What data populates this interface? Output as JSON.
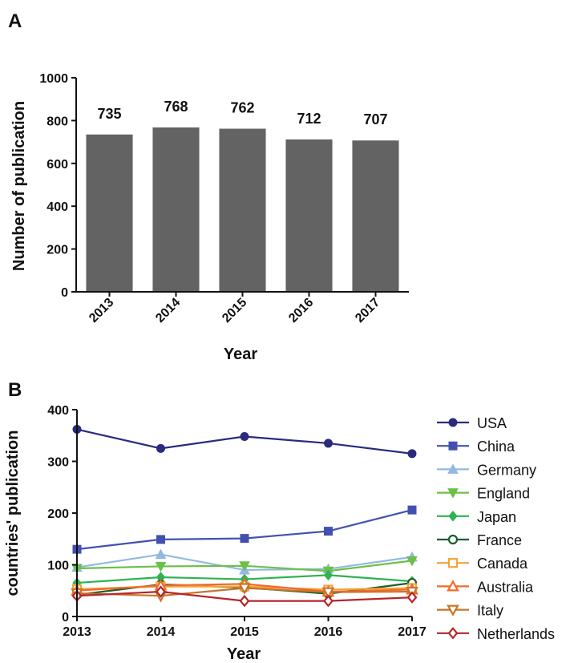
{
  "panel_a_label": "A",
  "panel_b_label": "B",
  "chart_data": [
    {
      "type": "bar",
      "categories": [
        "2013",
        "2014",
        "2015",
        "2016",
        "2017"
      ],
      "values": [
        735,
        768,
        762,
        712,
        707
      ],
      "data_labels": [
        "735",
        "768",
        "762",
        "712",
        "707"
      ],
      "title": "",
      "xlabel": "Year",
      "ylabel": "Number of publication",
      "ylim": [
        0,
        1000
      ],
      "yticks": [
        "0",
        "200",
        "400",
        "600",
        "800",
        "1000"
      ],
      "bar_color": "#636363",
      "grid": false
    },
    {
      "type": "line",
      "x": [
        "2013",
        "2014",
        "2015",
        "2016",
        "2017"
      ],
      "xlabel": "Year",
      "ylabel": "countries' publication",
      "ylim": [
        0,
        400
      ],
      "yticks": [
        "0",
        "100",
        "200",
        "300",
        "400"
      ],
      "legend_position": "right",
      "grid": false,
      "series": [
        {
          "name": "USA",
          "color": "#2a2a7f",
          "marker": "circle",
          "values": [
            362,
            325,
            348,
            335,
            315
          ]
        },
        {
          "name": "China",
          "color": "#4251b0",
          "marker": "square",
          "values": [
            130,
            149,
            151,
            165,
            206
          ]
        },
        {
          "name": "Germany",
          "color": "#93b8e3",
          "marker": "triangle-up",
          "values": [
            95,
            120,
            90,
            92,
            115
          ]
        },
        {
          "name": "England",
          "color": "#6cc049",
          "marker": "triangle-down",
          "values": [
            93,
            97,
            98,
            88,
            108
          ]
        },
        {
          "name": "Japan",
          "color": "#2fb351",
          "marker": "diamond",
          "values": [
            65,
            76,
            72,
            80,
            68
          ]
        },
        {
          "name": "France",
          "color": "#1a5e2c",
          "marker": "circle-open",
          "values": [
            42,
            62,
            56,
            44,
            65
          ]
        },
        {
          "name": "Canada",
          "color": "#f6a23c",
          "marker": "square-open",
          "values": [
            53,
            58,
            58,
            52,
            55
          ]
        },
        {
          "name": "Australia",
          "color": "#f26a28",
          "marker": "triangle-up-open",
          "values": [
            50,
            60,
            63,
            48,
            52
          ]
        },
        {
          "name": "Italy",
          "color": "#c8742a",
          "marker": "triangle-down-open",
          "values": [
            45,
            40,
            55,
            47,
            48
          ]
        },
        {
          "name": "Netherlands",
          "color": "#b5262b",
          "marker": "diamond-open",
          "values": [
            40,
            48,
            30,
            30,
            37
          ]
        }
      ]
    }
  ]
}
